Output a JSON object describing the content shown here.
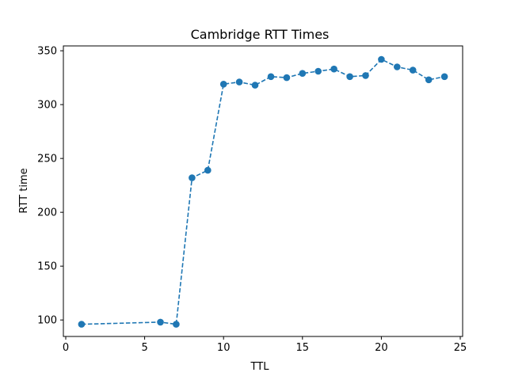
{
  "chart_data": {
    "type": "line",
    "title": "Cambridge RTT Times",
    "xlabel": "TTL",
    "ylabel": "RTT time",
    "xlim": [
      -0.15,
      25.15
    ],
    "ylim": [
      84.7,
      354.5
    ],
    "x_ticks": [
      0,
      5,
      10,
      15,
      20,
      25
    ],
    "y_ticks": [
      100,
      150,
      200,
      250,
      300,
      350
    ],
    "grid": false,
    "line_style": "dashed",
    "marker": "circle",
    "color": "#1f77b4",
    "series": [
      {
        "x": [
          1,
          6,
          7,
          8,
          9,
          10,
          11,
          12,
          13,
          14,
          15,
          16,
          17,
          18,
          19,
          20,
          21,
          22,
          23,
          24
        ],
        "y": [
          96,
          98,
          96,
          232,
          239,
          319,
          321,
          318,
          326,
          325,
          329,
          331,
          333,
          326,
          327,
          342,
          335,
          332,
          323,
          326
        ]
      }
    ]
  }
}
